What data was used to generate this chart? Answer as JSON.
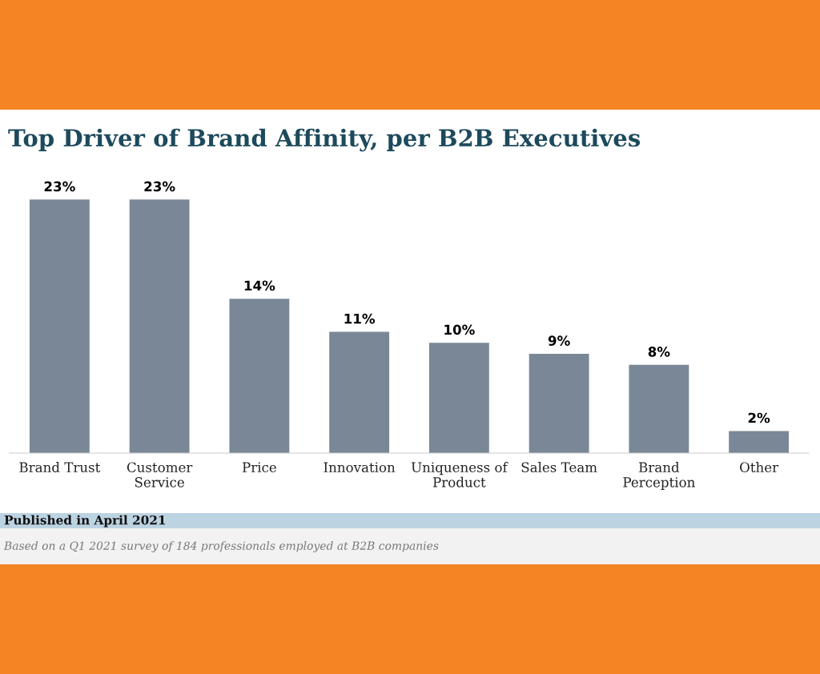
{
  "chart_data": {
    "type": "bar",
    "title": "Top Driver of Brand Affinity, per B2B Executives",
    "categories": [
      "Brand Trust",
      "Customer\nService",
      "Price",
      "Innovation",
      "Uniqueness of\nProduct",
      "Sales Team",
      "Brand\nPerception",
      "Other"
    ],
    "values": [
      23,
      23,
      14,
      11,
      10,
      9,
      8,
      2
    ],
    "value_labels": [
      "23%",
      "23%",
      "14%",
      "11%",
      "10%",
      "9%",
      "8%",
      "2%"
    ],
    "color": "#7a8796",
    "annotations": [
      "Published in April 2021",
      "Based on a Q1 2021 survey of 184 professionals employed at B2B companies"
    ],
    "legend": false
  }
}
